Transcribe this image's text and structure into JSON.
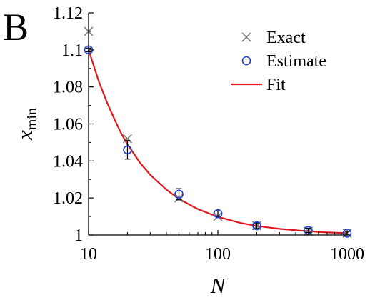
{
  "panel_label": "B",
  "colors": {
    "exact": "#808080",
    "estimate": "#1f3fd6",
    "fit": "#e0191e",
    "axis": "#000000"
  },
  "chart_data": {
    "type": "scatter",
    "title": "",
    "xlabel": "N",
    "ylabel": {
      "base": "x",
      "subscript": "min"
    },
    "xscale": "log",
    "xlim": [
      10,
      1000
    ],
    "ylim": [
      1,
      1.12
    ],
    "xticks": [
      {
        "value": 10,
        "label": "10"
      },
      {
        "value": 100,
        "label": "100"
      },
      {
        "value": 1000,
        "label": "1000"
      }
    ],
    "yticks": [
      {
        "value": 1,
        "label": "1"
      },
      {
        "value": 1.02,
        "label": "1.02"
      },
      {
        "value": 1.04,
        "label": "1.04"
      },
      {
        "value": 1.06,
        "label": "1.06"
      },
      {
        "value": 1.08,
        "label": "1.08"
      },
      {
        "value": 1.1,
        "label": "1.1"
      },
      {
        "value": 1.12,
        "label": "1.12"
      }
    ],
    "grid": false,
    "legend_position": "top-right",
    "series": [
      {
        "name": "Exact",
        "marker": "cross",
        "x": [
          10,
          20,
          50,
          100,
          200,
          500,
          1000
        ],
        "y": [
          1.11,
          1.052,
          1.02,
          1.01,
          1.005,
          1.002,
          1.001
        ]
      },
      {
        "name": "Estimate",
        "marker": "open-circle",
        "x": [
          10,
          20,
          50,
          100,
          200,
          500,
          1000
        ],
        "y": [
          1.1,
          1.046,
          1.022,
          1.0115,
          1.005,
          1.0025,
          1.001
        ],
        "yerr": [
          0.001,
          0.005,
          0.003,
          0.0015,
          0.0015,
          0.0012,
          0.001
        ]
      },
      {
        "name": "Fit",
        "marker": "line",
        "x": [
          10,
          12,
          14,
          16,
          18,
          20,
          25,
          30,
          40,
          50,
          70,
          100,
          150,
          200,
          300,
          500,
          700,
          1000
        ],
        "y": [
          1.1,
          1.083,
          1.071,
          1.062,
          1.0545,
          1.049,
          1.039,
          1.0325,
          1.0245,
          1.0195,
          1.014,
          1.0098,
          1.0065,
          1.0049,
          1.0033,
          1.002,
          1.0014,
          1.001
        ]
      }
    ]
  }
}
